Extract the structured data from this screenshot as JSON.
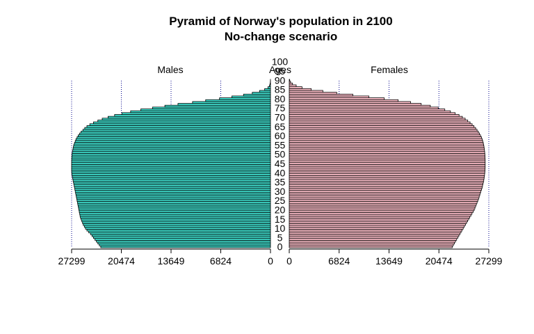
{
  "chart_data": {
    "type": "bar",
    "title": "Pyramid of Norway's population in 2100",
    "subtitle": "No-change scenario",
    "left_label": "Males",
    "center_label": "Ages",
    "right_label": "Females",
    "xlim": [
      0,
      27299
    ],
    "x_ticks": [
      0,
      6824,
      13649,
      20474,
      27299
    ],
    "age_ticks": [
      0,
      5,
      10,
      15,
      20,
      25,
      30,
      35,
      40,
      45,
      50,
      55,
      60,
      65,
      70,
      75,
      80,
      85,
      90,
      95,
      100
    ],
    "grid": "dotted vertical lines at x ticks",
    "colors": {
      "males": "#40e0d0",
      "females": "#ffc0cb",
      "bar_border": "#000000",
      "grid": "#00008b"
    },
    "series": [
      {
        "name": "Males",
        "values": [
          23300,
          23500,
          23700,
          23900,
          24100,
          24300,
          24500,
          24700,
          24950,
          25200,
          25400,
          25550,
          25700,
          25800,
          25900,
          26000,
          26100,
          26150,
          26200,
          26250,
          26300,
          26350,
          26400,
          26450,
          26500,
          26550,
          26600,
          26650,
          26700,
          26750,
          26800,
          26850,
          26900,
          26950,
          27000,
          27050,
          27100,
          27150,
          27200,
          27250,
          27280,
          27299,
          27299,
          27299,
          27299,
          27299,
          27299,
          27290,
          27280,
          27260,
          27240,
          27200,
          27150,
          27100,
          27050,
          27000,
          26900,
          26800,
          26700,
          26550,
          26400,
          26200,
          26000,
          25750,
          25500,
          25200,
          24800,
          24300,
          23700,
          23100,
          22300,
          21400,
          20400,
          19200,
          17800,
          16200,
          14500,
          12700,
          10700,
          8900,
          7000,
          5300,
          3700,
          2500,
          1500,
          800,
          350,
          130,
          60,
          20,
          8
        ]
      },
      {
        "name": "Females",
        "values": [
          22300,
          22450,
          22600,
          22750,
          22900,
          23050,
          23200,
          23350,
          23500,
          23650,
          23800,
          23950,
          24100,
          24250,
          24400,
          24550,
          24700,
          24850,
          25000,
          25150,
          25300,
          25400,
          25500,
          25600,
          25700,
          25800,
          25900,
          25980,
          26060,
          26140,
          26220,
          26300,
          26380,
          26440,
          26500,
          26560,
          26610,
          26650,
          26690,
          26720,
          26750,
          26770,
          26790,
          26800,
          26800,
          26800,
          26800,
          26800,
          26790,
          26780,
          26760,
          26740,
          26710,
          26680,
          26640,
          26600,
          26540,
          26470,
          26390,
          26290,
          26170,
          26030,
          25870,
          25690,
          25490,
          25270,
          25020,
          24740,
          24420,
          24070,
          23680,
          23230,
          22700,
          22050,
          21280,
          20380,
          19300,
          18050,
          16600,
          14900,
          13000,
          10900,
          8700,
          6500,
          4600,
          3000,
          1750,
          950,
          450,
          180,
          60
        ]
      }
    ]
  }
}
